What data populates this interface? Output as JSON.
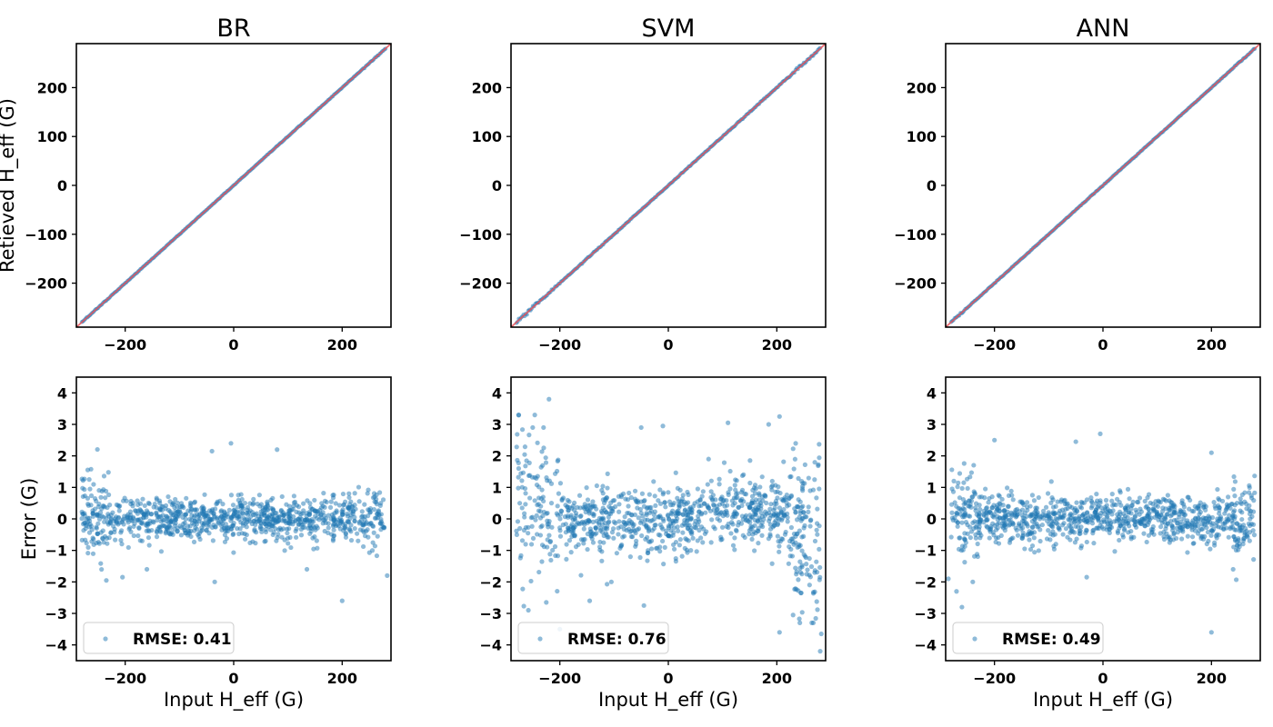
{
  "chart_data": {
    "type": "scatter",
    "figure": "3x2 grid of model comparison scatter plots",
    "models": [
      "BR",
      "SVM",
      "ANN"
    ],
    "colors": {
      "points": "#1f77b4",
      "identity_line": "#e8545b",
      "axes": "#000000",
      "legend_border": "#cccccc"
    },
    "top_row": {
      "type": "scatter",
      "ylabel": "Retieved H_eff (G)",
      "xlim": [
        -290,
        290
      ],
      "ylim": [
        -290,
        290
      ],
      "xticks": [
        -200,
        0,
        200
      ],
      "yticks": [
        -200,
        -100,
        0,
        100,
        200
      ],
      "xtick_labels": [
        "−200",
        "0",
        "200"
      ],
      "ytick_labels": [
        "−200",
        "−100",
        "0",
        "100",
        "200"
      ],
      "identity_line": [
        [
          -290,
          -290
        ],
        [
          290,
          290
        ]
      ],
      "x_range_points": [
        -280,
        280
      ],
      "point_count": 260
    },
    "bottom_row": {
      "type": "scatter",
      "xlabel": "Input  H_eff (G)",
      "ylabel": "Error (G)",
      "xlim": [
        -290,
        290
      ],
      "ylim": [
        -4.5,
        4.5
      ],
      "xticks": [
        -200,
        0,
        200
      ],
      "yticks": [
        -4,
        -3,
        -2,
        -1,
        0,
        1,
        2,
        3,
        4
      ],
      "xtick_labels": [
        "−200",
        "0",
        "200"
      ],
      "ytick_labels": [
        "−4",
        "−3",
        "−2",
        "−1",
        "0",
        "1",
        "2",
        "3",
        "4"
      ],
      "point_count": 1000
    },
    "panels": [
      {
        "title": "BR",
        "legend": "RMSE: 0.41",
        "rmse": 0.41,
        "outliers": [
          [
            -40,
            2.15
          ],
          [
            -35,
            -2.0
          ],
          [
            -5,
            2.4
          ],
          [
            80,
            2.2
          ],
          [
            200,
            -2.6
          ],
          [
            283,
            -1.8
          ],
          [
            -205,
            -1.85
          ],
          [
            -160,
            -1.6
          ],
          [
            135,
            -1.6
          ]
        ]
      },
      {
        "title": "SVM",
        "legend": "RMSE: 0.76",
        "rmse": 0.76,
        "outliers": [
          [
            -220,
            3.8
          ],
          [
            -250,
            2.9
          ],
          [
            -230,
            2.9
          ],
          [
            -258,
            -2.9
          ],
          [
            -225,
            -2.65
          ],
          [
            -200,
            -3.5
          ],
          [
            -145,
            -2.6
          ],
          [
            -105,
            -2.0
          ],
          [
            -45,
            -2.75
          ],
          [
            110,
            3.05
          ],
          [
            185,
            3.0
          ],
          [
            205,
            3.25
          ],
          [
            205,
            -3.6
          ],
          [
            230,
            -3.05
          ],
          [
            245,
            -2.35
          ],
          [
            282,
            -3.65
          ],
          [
            280,
            -4.2
          ],
          [
            -10,
            2.95
          ],
          [
            -50,
            2.9
          ]
        ]
      },
      {
        "title": "ANN",
        "legend": "RMSE: 0.49",
        "rmse": 0.49,
        "outliers": [
          [
            -5,
            2.7
          ],
          [
            -200,
            2.5
          ],
          [
            -50,
            2.45
          ],
          [
            200,
            2.1
          ],
          [
            200,
            -3.6
          ],
          [
            -260,
            -2.8
          ],
          [
            -270,
            -2.3
          ],
          [
            -240,
            -2.0
          ],
          [
            -285,
            -1.9
          ],
          [
            240,
            -1.6
          ],
          [
            -30,
            -1.85
          ]
        ]
      }
    ]
  }
}
